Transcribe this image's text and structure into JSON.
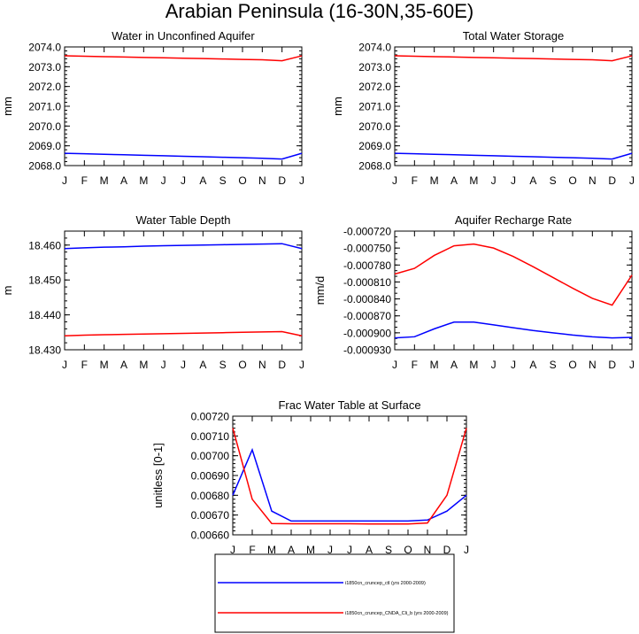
{
  "page_title": "Arabian Peninsula (16-30N,35-60E)",
  "colors": {
    "ctl": "#0000ff",
    "exp": "#ff0000",
    "frame": "#000000"
  },
  "legend": {
    "entries": [
      {
        "label": "i1850cn_cruncep_ctl (yrs 2000-2009)",
        "color": "#0000ff"
      },
      {
        "label": "i1850cn_cruncep_CNDA_Cli_b (yrs 2000-2009)",
        "color": "#ff0000"
      }
    ]
  },
  "chart_data": [
    {
      "type": "line",
      "title": "Water in Unconfined Aquifer",
      "ylabel": "mm",
      "xlabel": "",
      "categories": [
        "J",
        "F",
        "M",
        "A",
        "M",
        "J",
        "J",
        "A",
        "S",
        "O",
        "N",
        "D",
        "J"
      ],
      "ylim": [
        2068.0,
        2074.0
      ],
      "yticks": [
        "2068.0",
        "2069.0",
        "2070.0",
        "2071.0",
        "2072.0",
        "2073.0",
        "2074.0"
      ],
      "series": [
        {
          "name": "i1850cn_cruncep_ctl (yrs 2000-2009)",
          "color": "#0000ff",
          "values": [
            2068.62,
            2068.6,
            2068.57,
            2068.55,
            2068.52,
            2068.5,
            2068.47,
            2068.45,
            2068.42,
            2068.4,
            2068.37,
            2068.33,
            2068.62
          ]
        },
        {
          "name": "i1850cn_cruncep_CNDA_Cli_b (yrs 2000-2009)",
          "color": "#ff0000",
          "values": [
            2073.55,
            2073.53,
            2073.51,
            2073.49,
            2073.47,
            2073.45,
            2073.43,
            2073.41,
            2073.39,
            2073.37,
            2073.35,
            2073.3,
            2073.55
          ]
        }
      ]
    },
    {
      "type": "line",
      "title": "Total Water Storage",
      "ylabel": "mm",
      "xlabel": "",
      "categories": [
        "J",
        "F",
        "M",
        "A",
        "M",
        "J",
        "J",
        "A",
        "S",
        "O",
        "N",
        "D",
        "J"
      ],
      "ylim": [
        2068.0,
        2074.0
      ],
      "yticks": [
        "2068.0",
        "2069.0",
        "2070.0",
        "2071.0",
        "2072.0",
        "2073.0",
        "2074.0"
      ],
      "series": [
        {
          "name": "i1850cn_cruncep_ctl (yrs 2000-2009)",
          "color": "#0000ff",
          "values": [
            2068.62,
            2068.6,
            2068.57,
            2068.55,
            2068.52,
            2068.5,
            2068.47,
            2068.45,
            2068.42,
            2068.4,
            2068.37,
            2068.33,
            2068.62
          ]
        },
        {
          "name": "i1850cn_cruncep_CNDA_Cli_b (yrs 2000-2009)",
          "color": "#ff0000",
          "values": [
            2073.55,
            2073.53,
            2073.51,
            2073.49,
            2073.47,
            2073.45,
            2073.43,
            2073.41,
            2073.39,
            2073.37,
            2073.35,
            2073.3,
            2073.55
          ]
        }
      ]
    },
    {
      "type": "line",
      "title": "Water Table Depth",
      "ylabel": "m",
      "xlabel": "",
      "categories": [
        "J",
        "F",
        "M",
        "A",
        "M",
        "J",
        "J",
        "A",
        "S",
        "O",
        "N",
        "D",
        "J"
      ],
      "ylim": [
        18.43,
        18.464
      ],
      "yticks": [
        "18.430",
        "18.440",
        "18.450",
        "18.460"
      ],
      "series": [
        {
          "name": "i1850cn_cruncep_ctl (yrs 2000-2009)",
          "color": "#0000ff",
          "values": [
            18.459,
            18.4592,
            18.4594,
            18.4595,
            18.4597,
            18.4598,
            18.4599,
            18.46,
            18.4601,
            18.4602,
            18.4603,
            18.4604,
            18.459
          ]
        },
        {
          "name": "i1850cn_cruncep_CNDA_Cli_b (yrs 2000-2009)",
          "color": "#ff0000",
          "values": [
            18.434,
            18.4342,
            18.4343,
            18.4344,
            18.4345,
            18.4346,
            18.4347,
            18.4348,
            18.4349,
            18.435,
            18.4351,
            18.4352,
            18.434
          ]
        }
      ]
    },
    {
      "type": "line",
      "title": "Aquifer Recharge Rate",
      "ylabel": "mm/d",
      "xlabel": "",
      "categories": [
        "J",
        "F",
        "M",
        "A",
        "M",
        "J",
        "J",
        "A",
        "S",
        "O",
        "N",
        "D",
        "J"
      ],
      "ylim": [
        -0.00093,
        -0.00072
      ],
      "yticks": [
        "-0.000930",
        "-0.000900",
        "-0.000870",
        "-0.000840",
        "-0.000810",
        "-0.000780",
        "-0.000750",
        "-0.000720"
      ],
      "series": [
        {
          "name": "i1850cn_cruncep_ctl (yrs 2000-2009)",
          "color": "#0000ff",
          "values": [
            -0.000909,
            -0.000907,
            -0.000893,
            -0.000881,
            -0.000881,
            -0.000886,
            -0.000891,
            -0.000896,
            -0.0009,
            -0.000904,
            -0.000907,
            -0.000909,
            -0.000908
          ]
        },
        {
          "name": "i1850cn_cruncep_CNDA_Cli_b (yrs 2000-2009)",
          "color": "#ff0000",
          "values": [
            -0.000796,
            -0.000786,
            -0.000763,
            -0.000746,
            -0.000743,
            -0.00075,
            -0.000765,
            -0.000783,
            -0.000802,
            -0.000821,
            -0.000839,
            -0.000851,
            -0.000798
          ]
        }
      ]
    },
    {
      "type": "line",
      "title": "Frac Water Table at Surface",
      "ylabel": "unitless [0-1]",
      "xlabel": "",
      "categories": [
        "J",
        "F",
        "M",
        "A",
        "M",
        "J",
        "J",
        "A",
        "S",
        "O",
        "N",
        "D",
        "J"
      ],
      "ylim": [
        0.0066,
        0.0072
      ],
      "yticks": [
        "0.00660",
        "0.00670",
        "0.00680",
        "0.00690",
        "0.00700",
        "0.00710",
        "0.00720"
      ],
      "series": [
        {
          "name": "i1850cn_cruncep_ctl (yrs 2000-2009)",
          "color": "#0000ff",
          "values": [
            0.0068,
            0.00703,
            0.00672,
            0.00667,
            0.00667,
            0.00667,
            0.00667,
            0.00667,
            0.00667,
            0.00667,
            0.006675,
            0.00672,
            0.0068
          ]
        },
        {
          "name": "i1850cn_cruncep_CNDA_Cli_b (yrs 2000-2009)",
          "color": "#ff0000",
          "values": [
            0.00714,
            0.00678,
            0.006657,
            0.006656,
            0.006656,
            0.006656,
            0.006656,
            0.006655,
            0.006655,
            0.006655,
            0.00666,
            0.0068,
            0.00714
          ]
        }
      ]
    }
  ]
}
